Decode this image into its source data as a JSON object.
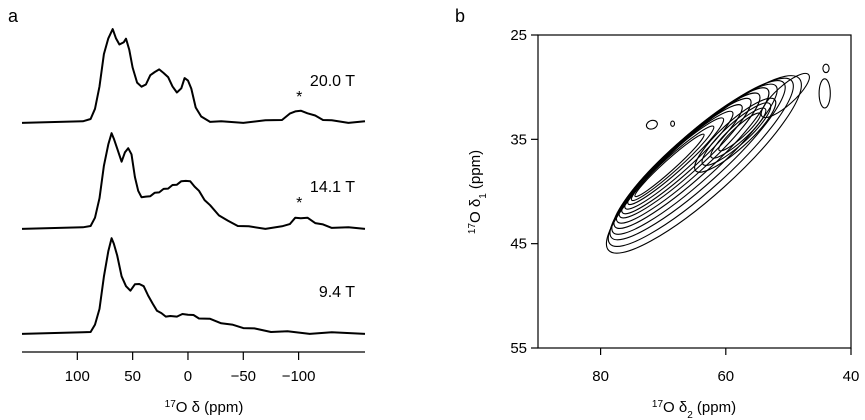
{
  "chart_data": [
    {
      "type": "line",
      "panel_label": "a",
      "xlabel": "¹⁷O δ (ppm)",
      "xticks": [
        100,
        50,
        0,
        -50,
        -100
      ],
      "xtick_labels": [
        "100",
        "50",
        "0",
        "−50",
        "−100"
      ],
      "xlim": [
        150,
        -160
      ],
      "series": [
        {
          "name": "20.0 T",
          "x": [
            150,
            95,
            88,
            84,
            80,
            76,
            72,
            68,
            65,
            62,
            58,
            56,
            53,
            50,
            46,
            42,
            38,
            34,
            30,
            26,
            22,
            18,
            14,
            10,
            6,
            3,
            0,
            -3,
            -7,
            -12,
            -20,
            -30,
            -50,
            -70,
            -85,
            -92,
            -97,
            -102,
            -108,
            -115,
            -122,
            -130,
            -145,
            -160
          ],
          "y": [
            0.02,
            0.02,
            0.06,
            0.15,
            0.4,
            0.72,
            0.9,
            0.98,
            0.9,
            0.82,
            0.86,
            0.88,
            0.78,
            0.58,
            0.44,
            0.38,
            0.42,
            0.5,
            0.55,
            0.56,
            0.54,
            0.48,
            0.4,
            0.32,
            0.38,
            0.47,
            0.46,
            0.36,
            0.18,
            0.07,
            0.03,
            0.02,
            0.02,
            0.03,
            0.05,
            0.1,
            0.14,
            0.13,
            0.12,
            0.08,
            0.05,
            0.03,
            0.02,
            0.02
          ]
        },
        {
          "name": "14.1 T",
          "x": [
            150,
            95,
            88,
            84,
            80,
            76,
            72,
            69,
            67,
            64,
            60,
            57,
            54,
            51,
            48,
            45,
            42,
            38,
            34,
            30,
            26,
            22,
            18,
            14,
            10,
            6,
            2,
            -2,
            -6,
            -10,
            -15,
            -20,
            -28,
            -36,
            -45,
            -55,
            -70,
            -85,
            -92,
            -97,
            -102,
            -108,
            -115,
            -122,
            -130,
            -145,
            -160
          ],
          "y": [
            0.02,
            0.02,
            0.05,
            0.12,
            0.34,
            0.66,
            0.9,
            1.0,
            0.96,
            0.84,
            0.72,
            0.8,
            0.86,
            0.78,
            0.56,
            0.4,
            0.35,
            0.34,
            0.36,
            0.38,
            0.4,
            0.42,
            0.44,
            0.46,
            0.48,
            0.5,
            0.52,
            0.5,
            0.46,
            0.4,
            0.32,
            0.25,
            0.16,
            0.09,
            0.05,
            0.03,
            0.02,
            0.03,
            0.07,
            0.12,
            0.13,
            0.12,
            0.08,
            0.05,
            0.03,
            0.02,
            0.02
          ]
        },
        {
          "name": "9.4 T",
          "x": [
            150,
            95,
            88,
            84,
            80,
            76,
            72,
            69,
            67,
            64,
            60,
            56,
            52,
            48,
            44,
            40,
            36,
            32,
            28,
            24,
            20,
            16,
            10,
            5,
            0,
            -5,
            -10,
            -20,
            -30,
            -40,
            -50,
            -60,
            -75,
            -90,
            -110,
            -130,
            -160
          ],
          "y": [
            0.02,
            0.02,
            0.04,
            0.1,
            0.28,
            0.6,
            0.88,
            1.0,
            0.96,
            0.82,
            0.62,
            0.5,
            0.47,
            0.52,
            0.54,
            0.5,
            0.42,
            0.32,
            0.26,
            0.22,
            0.2,
            0.19,
            0.2,
            0.21,
            0.22,
            0.2,
            0.18,
            0.16,
            0.13,
            0.1,
            0.08,
            0.06,
            0.04,
            0.03,
            0.02,
            0.02,
            0.02
          ]
        }
      ],
      "annotations": [
        {
          "text": "*",
          "x": -97,
          "series": "20.0 T"
        },
        {
          "text": "*",
          "x": -97,
          "series": "14.1 T"
        }
      ]
    },
    {
      "type": "contour",
      "panel_label": "b",
      "xlabel": "¹⁷O δ₂ (ppm)",
      "ylabel": "¹⁷O δ₁ (ppm)",
      "xlim": [
        90,
        40
      ],
      "ylim": [
        25,
        55
      ],
      "xticks": [
        80,
        60,
        40
      ],
      "yticks": [
        25,
        35,
        45,
        55
      ],
      "contours": [
        {
          "level": 1,
          "center": [
            63.5,
            37.4
          ],
          "rx": 20.5,
          "ry": 2.9,
          "angle": -42
        },
        {
          "level": 2,
          "center": [
            64.0,
            37.2
          ],
          "rx": 19.5,
          "ry": 2.6,
          "angle": -42
        },
        {
          "level": 3,
          "center": [
            64.5,
            37.0
          ],
          "rx": 18.5,
          "ry": 2.35,
          "angle": -42
        },
        {
          "level": 4,
          "center": [
            65.0,
            36.9
          ],
          "rx": 17.5,
          "ry": 2.1,
          "angle": -42
        },
        {
          "level": 5,
          "center": [
            65.5,
            36.8
          ],
          "rx": 16.4,
          "ry": 1.9,
          "angle": -42
        },
        {
          "level": 6,
          "center": [
            66.0,
            36.8
          ],
          "rx": 15.2,
          "ry": 1.7,
          "angle": -42
        },
        {
          "level": 7,
          "center": [
            66.5,
            36.8
          ],
          "rx": 14.0,
          "ry": 1.5,
          "angle": -42
        },
        {
          "level": 8,
          "center": [
            67.0,
            36.9
          ],
          "rx": 12.8,
          "ry": 1.3,
          "angle": -42
        },
        {
          "level": 9,
          "center": [
            67.5,
            37.0
          ],
          "rx": 11.5,
          "ry": 1.1,
          "angle": -42
        },
        {
          "level": 10,
          "center": [
            68.0,
            37.1
          ],
          "rx": 10.2,
          "ry": 0.9,
          "angle": -42
        },
        {
          "level": 11,
          "center": [
            68.5,
            37.3
          ],
          "rx": 8.8,
          "ry": 0.7,
          "angle": -42
        },
        {
          "level": 12,
          "center": [
            69.0,
            37.5
          ],
          "rx": 7.4,
          "ry": 0.52,
          "angle": -42
        },
        {
          "level": 13,
          "center": [
            58.5,
            34.6
          ],
          "rx": 8.5,
          "ry": 1.3,
          "angle": -42
        },
        {
          "level": 14,
          "center": [
            58.3,
            34.5
          ],
          "rx": 7.2,
          "ry": 1.05,
          "angle": -42
        },
        {
          "level": 15,
          "center": [
            58.0,
            34.4
          ],
          "rx": 5.8,
          "ry": 0.8,
          "angle": -42
        },
        {
          "level": 16,
          "center": [
            57.8,
            34.3
          ],
          "rx": 4.4,
          "ry": 0.55,
          "angle": -42
        },
        {
          "level": 17,
          "center": [
            50.5,
            30.8
          ],
          "rx": 5.0,
          "ry": 0.9,
          "angle": -42
        },
        {
          "level": 18,
          "center": [
            44.2,
            30.6
          ],
          "rx": 0.9,
          "ry": 1.4,
          "angle": 0
        },
        {
          "level": 19,
          "center": [
            44.0,
            28.2
          ],
          "rx": 0.5,
          "ry": 0.4,
          "angle": 0
        },
        {
          "level": 20,
          "center": [
            71.8,
            33.6
          ],
          "rx": 0.9,
          "ry": 0.4,
          "angle": -20
        },
        {
          "level": 21,
          "center": [
            68.5,
            33.5
          ],
          "rx": 0.3,
          "ry": 0.25,
          "angle": 0
        }
      ]
    }
  ]
}
